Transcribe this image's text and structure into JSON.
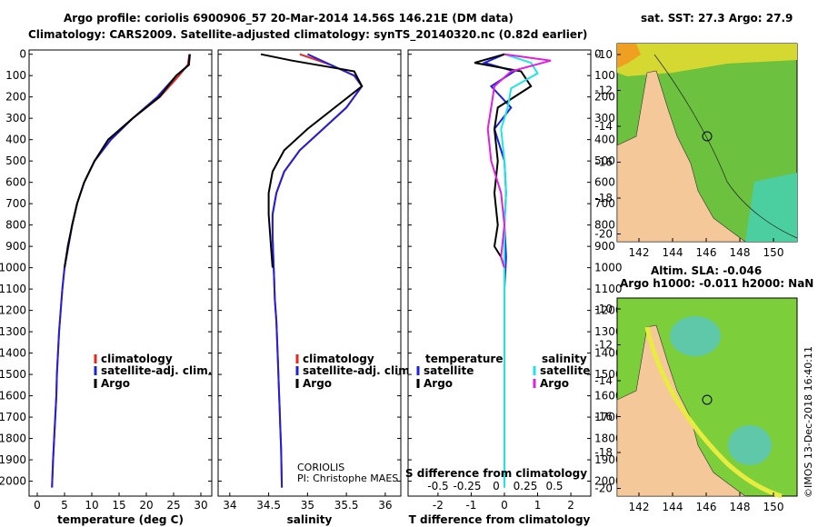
{
  "header": {
    "line1": "Argo profile: coriolis 6900906_57 20-Mar-2014 14.56S 146.21E (DM data)",
    "line2": "Climatology: CARS2009. Satellite-adjusted climatology: synTS_20140320.nc (0.82d earlier)"
  },
  "depth_ticks": [
    0,
    100,
    200,
    300,
    400,
    500,
    600,
    700,
    800,
    900,
    1000,
    1100,
    1200,
    1300,
    1400,
    1500,
    1600,
    1700,
    1800,
    1900,
    2000
  ],
  "colors": {
    "climatology": "#e8261c",
    "satellite": "#1f1fe0",
    "argo": "#000000",
    "sal_sat": "#1ee6e6",
    "sal_argo": "#e020e0",
    "land": "#f5c89a",
    "sea": "#5dbb3a"
  },
  "chart_data": [
    {
      "type": "line",
      "xlabel": "temperature (deg C)",
      "xticks": [
        0,
        5,
        10,
        15,
        20,
        25,
        30
      ],
      "xlim": [
        -1.5,
        32
      ],
      "ylim": [
        2070,
        -20
      ],
      "legend": [
        "climatology",
        "satellite-adj. clim.",
        "Argo"
      ],
      "series": [
        {
          "name": "climatology",
          "x": [
            27.9,
            27.6,
            26,
            22.5,
            17.5,
            13.5,
            10.5,
            8.6,
            7.3,
            6.4,
            5.7,
            5,
            4.6,
            4.3,
            4.0,
            3.8,
            3.6,
            3.5,
            3.3,
            3.1,
            2.9,
            2.7
          ],
          "y": [
            0,
            50,
            100,
            200,
            300,
            400,
            500,
            600,
            700,
            800,
            900,
            1000,
            1100,
            1200,
            1300,
            1400,
            1500,
            1600,
            1700,
            1800,
            1900,
            2030
          ]
        },
        {
          "name": "satellite-adj. clim.",
          "x": [
            27.9,
            27.8,
            25.5,
            22,
            17.5,
            13.5,
            10.5,
            8.6,
            7.3,
            6.4,
            5.7,
            5,
            4.6,
            4.3,
            4.0,
            3.8,
            3.6,
            3.5,
            3.3,
            3.1,
            2.9,
            2.7
          ],
          "y": [
            0,
            50,
            100,
            200,
            300,
            400,
            500,
            600,
            700,
            800,
            900,
            1000,
            1100,
            1200,
            1300,
            1400,
            1500,
            1600,
            1700,
            1800,
            1900,
            2030
          ]
        },
        {
          "name": "Argo",
          "x": [
            28,
            27.8,
            25.5,
            22.4,
            17.5,
            13,
            10.5,
            8.6,
            7.3,
            6.4,
            5.6,
            5
          ],
          "y": [
            0,
            50,
            100,
            200,
            300,
            400,
            500,
            600,
            700,
            800,
            900,
            1000
          ]
        }
      ]
    },
    {
      "type": "line",
      "xlabel": "salinity",
      "xticks": [
        34,
        34.5,
        35,
        35.5,
        36
      ],
      "xlim": [
        33.85,
        36.2
      ],
      "ylim": [
        2070,
        -20
      ],
      "legend": [
        "climatology",
        "satellite-adj. clim.",
        "Argo"
      ],
      "annotation": [
        "CORIOLIS",
        "PI: Christophe MAES"
      ],
      "series": [
        {
          "name": "climatology",
          "x": [
            34.9,
            35.3,
            35.6,
            35.7,
            35.5,
            35.2,
            34.9,
            34.7,
            34.6,
            34.55,
            34.55,
            34.56,
            34.57,
            34.58,
            34.6,
            34.61,
            34.62,
            34.63,
            34.64,
            34.65,
            34.66,
            34.67
          ],
          "y": [
            0,
            50,
            100,
            150,
            250,
            350,
            450,
            550,
            650,
            750,
            850,
            950,
            1050,
            1150,
            1250,
            1350,
            1450,
            1550,
            1650,
            1750,
            1850,
            2030
          ]
        },
        {
          "name": "satellite-adj. clim.",
          "x": [
            35.0,
            35.3,
            35.6,
            35.7,
            35.5,
            35.2,
            34.9,
            34.7,
            34.6,
            34.55,
            34.55,
            34.56,
            34.57,
            34.58,
            34.6,
            34.61,
            34.62,
            34.63,
            34.64,
            34.65,
            34.66,
            34.67
          ],
          "y": [
            0,
            50,
            100,
            150,
            250,
            350,
            450,
            550,
            650,
            750,
            850,
            950,
            1050,
            1150,
            1250,
            1350,
            1450,
            1550,
            1650,
            1750,
            1850,
            2030
          ]
        },
        {
          "name": "Argo",
          "x": [
            34.4,
            34.8,
            35.6,
            35.7,
            35.35,
            35.0,
            34.7,
            34.55,
            34.5,
            34.5,
            34.52,
            34.54,
            34.55
          ],
          "y": [
            0,
            30,
            80,
            150,
            250,
            350,
            450,
            550,
            650,
            750,
            850,
            950,
            1000
          ]
        }
      ]
    },
    {
      "type": "line",
      "xlabel": "T difference from climatology",
      "xticks": [
        -2,
        -1,
        0,
        1,
        2
      ],
      "xlim": [
        -2.9,
        2.6
      ],
      "x2label": "S difference from climatology",
      "x2ticks": [
        "-0.5",
        "-0.25",
        "0",
        "0.25",
        "0.5"
      ],
      "ylim": [
        2070,
        -20
      ],
      "legend_left_title": "temperature",
      "legend_right_title": "salinity",
      "legend": [
        "satellite",
        "Argo",
        "satellite",
        "Argo"
      ],
      "series": [
        {
          "name": "temperature satellite",
          "x": [
            0,
            -0.6,
            0.3,
            -0.4,
            0.2,
            -0.3,
            0,
            0.05,
            0,
            0.05,
            0,
            0,
            0,
            0,
            0
          ],
          "y": [
            0,
            40,
            80,
            150,
            250,
            350,
            500,
            650,
            800,
            950,
            1100,
            1300,
            1500,
            1800,
            2030
          ]
        },
        {
          "name": "temperature Argo",
          "x": [
            0,
            -0.9,
            0.5,
            0.8,
            -0.2,
            -0.3,
            -0.2,
            -0.3,
            -0.2,
            -0.3,
            -0.1,
            0
          ],
          "y": [
            0,
            40,
            80,
            150,
            250,
            350,
            500,
            650,
            800,
            900,
            950,
            1000
          ]
        },
        {
          "name": "salinity satellite",
          "x": [
            0,
            0.8,
            1.0,
            0.2,
            0.1,
            -0.1,
            0,
            0.05,
            0,
            0,
            0,
            0,
            0
          ],
          "y": [
            0,
            40,
            90,
            160,
            250,
            350,
            500,
            650,
            800,
            1000,
            1300,
            1700,
            2030
          ]
        },
        {
          "name": "salinity Argo",
          "x": [
            0,
            1.4,
            0.2,
            -0.3,
            -0.4,
            -0.5,
            -0.4,
            -0.1,
            0,
            -0.1,
            0,
            0
          ],
          "y": [
            0,
            30,
            80,
            150,
            250,
            350,
            500,
            650,
            800,
            950,
            1000,
            1000
          ]
        }
      ]
    }
  ],
  "maps": [
    {
      "title": "sat. SST: 27.3 Argo: 27.9",
      "xticks": [
        "142",
        "144",
        "146",
        "148",
        "150"
      ],
      "yticks": [
        "-10",
        "-12",
        "-14",
        "-16",
        "-18",
        "-20"
      ]
    },
    {
      "title1": "Altim. SLA: -0.046",
      "title2": "Argo h1000: -0.011 h2000: NaN",
      "xticks": [
        "142",
        "144",
        "146",
        "148",
        "150"
      ],
      "yticks": [
        "-10",
        "-12",
        "-14",
        "-16",
        "-18",
        "-20"
      ]
    }
  ],
  "credit": "©IMOS 13-Dec-2018 16:40:11"
}
